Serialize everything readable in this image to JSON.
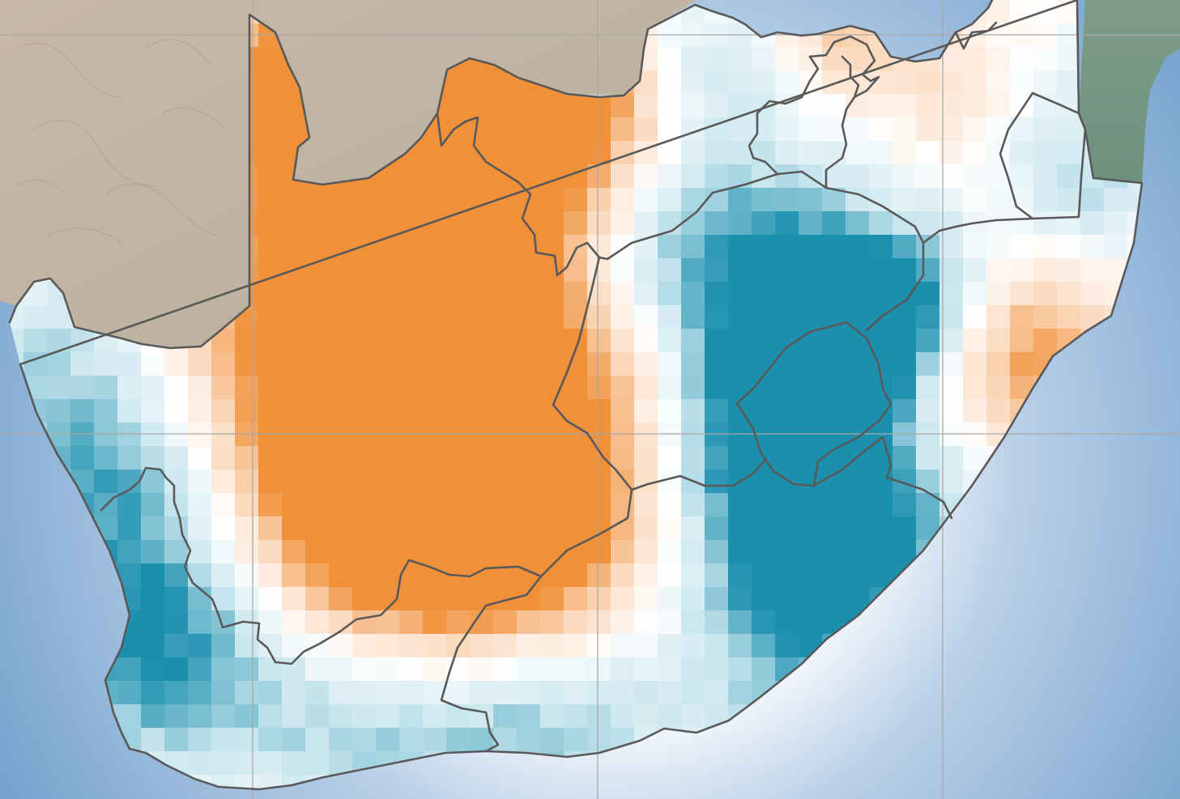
{
  "map": {
    "type": "gridded-anomaly",
    "palette": {
      "warm_strong": "#f0913a",
      "warm_light": "#fbd9bd",
      "neutral": "#ffffff",
      "cool_light": "#c9e6ee",
      "cool_strong": "#1a8fae"
    },
    "background": {
      "ocean_deep": "#6f9dcb",
      "ocean_coast": "#e8f0f8",
      "land_outside": "#c8bda9",
      "land_vegetated": "#7a9a88"
    },
    "boundary_color": "#595959",
    "graticule_color": "#a9a9a9",
    "features": [
      "south-africa",
      "lesotho",
      "eswatini",
      "provincial-boundaries",
      "graticule"
    ]
  }
}
